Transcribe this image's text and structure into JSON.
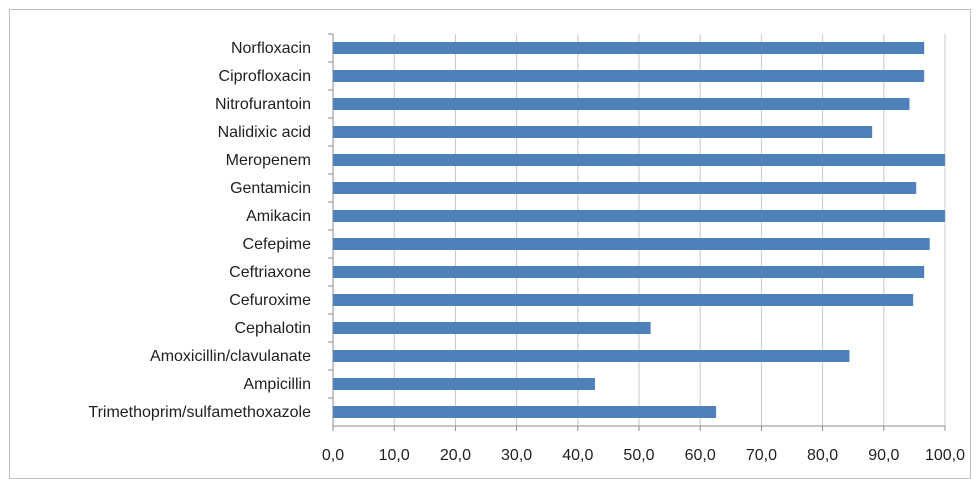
{
  "chart_data": {
    "type": "bar",
    "orientation": "horizontal",
    "categories": [
      "Norfloxacin",
      "Ciprofloxacin",
      "Nitrofurantoin",
      "Nalidixic acid",
      "Meropenem",
      "Gentamicin",
      "Amikacin",
      "Cefepime",
      "Ceftriaxone",
      "Cefuroxime",
      "Cephalotin",
      "Amoxicillin/clavulanate",
      "Ampicillin",
      "Trimethoprim/sulfamethoxazole"
    ],
    "values": [
      96.6,
      96.6,
      94.2,
      88.1,
      100.0,
      95.3,
      100.0,
      97.5,
      96.6,
      94.8,
      51.9,
      84.4,
      42.8,
      62.6
    ],
    "xlim": [
      0,
      100
    ],
    "xticks": [
      "0,0",
      "10,0",
      "20,0",
      "30,0",
      "40,0",
      "50,0",
      "60,0",
      "70,0",
      "80,0",
      "90,0",
      "100,0"
    ],
    "grid": true,
    "bar_color": "#4f81bd"
  }
}
